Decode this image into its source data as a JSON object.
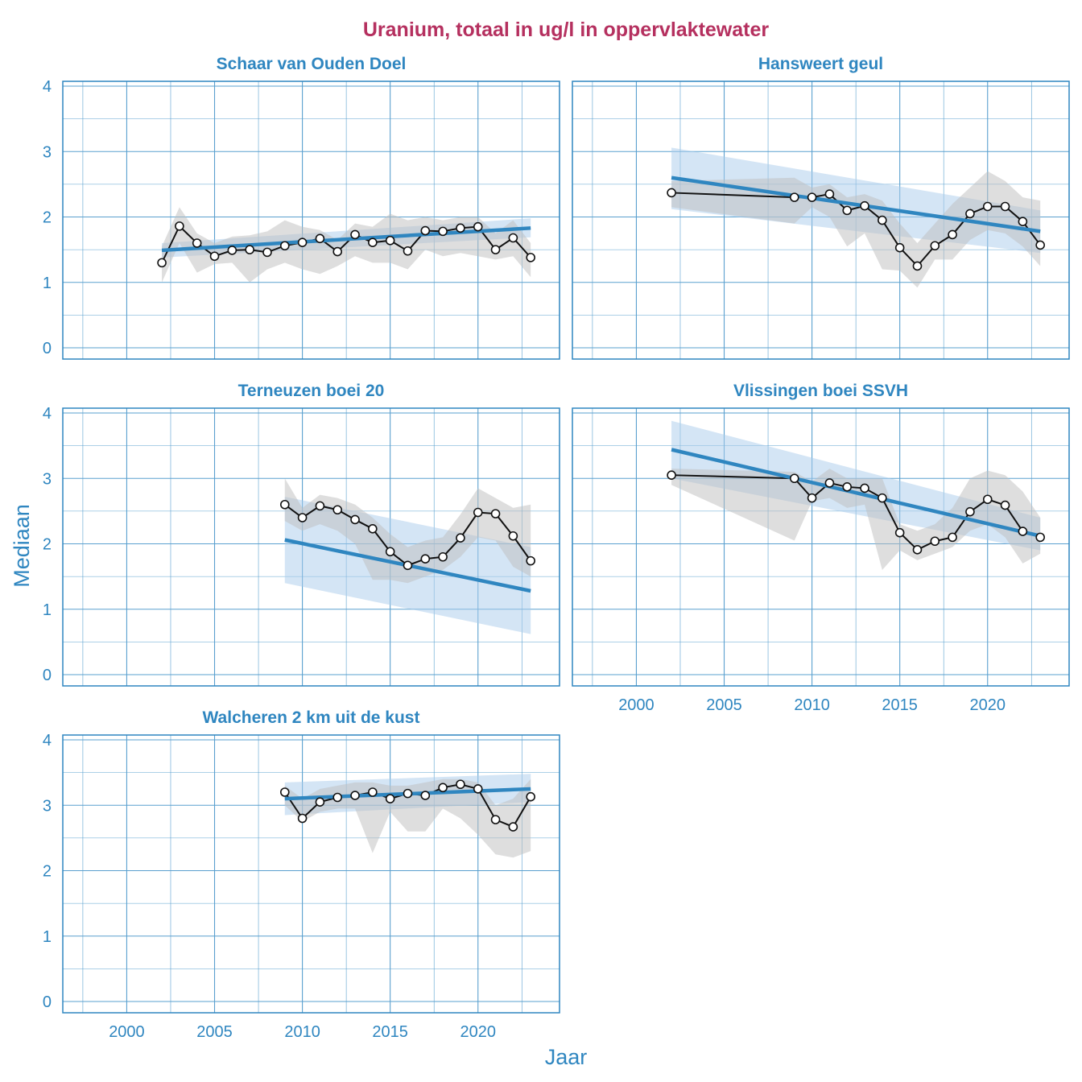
{
  "title": "Uranium, totaal in ug/l in oppervlaktewater",
  "xlabel": "Jaar",
  "ylabel": "Mediaan",
  "colors": {
    "title": "#B5305F",
    "accent": "#2F86C0",
    "grid": "#5AA0CF",
    "ribbon_trend": "#A9CCEC",
    "ribbon_data": "#BEBEBE",
    "line": "#111111"
  },
  "chart_data": [
    {
      "type": "line",
      "title": "Schaar van Ouden Doel",
      "xlim": [
        1997,
        2024
      ],
      "ylim": [
        0,
        4
      ],
      "x_ticks": [
        "2000",
        "2005",
        "2010",
        "2015",
        "2020"
      ],
      "y_ticks": [
        "0",
        "1",
        "2",
        "3",
        "4"
      ],
      "grid": true,
      "points": [
        [
          2002,
          1.3
        ],
        [
          2003,
          1.86
        ],
        [
          2004,
          1.6
        ],
        [
          2005,
          1.4
        ],
        [
          2006,
          1.49
        ],
        [
          2007,
          1.5
        ],
        [
          2008,
          1.46
        ],
        [
          2009,
          1.56
        ],
        [
          2010,
          1.61
        ],
        [
          2011,
          1.67
        ],
        [
          2012,
          1.47
        ],
        [
          2013,
          1.73
        ],
        [
          2014,
          1.61
        ],
        [
          2015,
          1.64
        ],
        [
          2016,
          1.48
        ],
        [
          2017,
          1.79
        ],
        [
          2018,
          1.78
        ],
        [
          2019,
          1.83
        ],
        [
          2020,
          1.85
        ],
        [
          2021,
          1.5
        ],
        [
          2022,
          1.68
        ],
        [
          2023,
          1.38
        ]
      ],
      "data_band": [
        [
          2002,
          1.0,
          1.55
        ],
        [
          2003,
          1.6,
          2.15
        ],
        [
          2004,
          1.15,
          1.75
        ],
        [
          2005,
          1.28,
          1.6
        ],
        [
          2006,
          1.3,
          1.7
        ],
        [
          2007,
          1.0,
          1.72
        ],
        [
          2008,
          1.2,
          1.78
        ],
        [
          2009,
          1.3,
          1.95
        ],
        [
          2010,
          1.2,
          1.85
        ],
        [
          2011,
          1.13,
          1.8
        ],
        [
          2012,
          1.25,
          1.65
        ],
        [
          2013,
          1.4,
          1.9
        ],
        [
          2014,
          1.3,
          1.85
        ],
        [
          2015,
          1.3,
          2.05
        ],
        [
          2016,
          1.2,
          1.95
        ],
        [
          2017,
          1.5,
          2.0
        ],
        [
          2018,
          1.4,
          1.95
        ],
        [
          2019,
          1.45,
          2.0
        ],
        [
          2020,
          1.4,
          2.0
        ],
        [
          2021,
          1.35,
          1.75
        ],
        [
          2022,
          1.4,
          1.95
        ],
        [
          2023,
          1.08,
          1.6
        ]
      ],
      "trend": {
        "x": [
          2002,
          2023
        ],
        "y": [
          1.49,
          1.83
        ],
        "lower": [
          1.38,
          1.69
        ],
        "upper": [
          1.6,
          1.98
        ]
      }
    },
    {
      "type": "line",
      "title": "Hansweert geul",
      "xlim": [
        1997,
        2024
      ],
      "ylim": [
        0,
        4
      ],
      "x_ticks": [
        "2000",
        "2005",
        "2010",
        "2015",
        "2020"
      ],
      "y_ticks": [
        "0",
        "1",
        "2",
        "3",
        "4"
      ],
      "grid": true,
      "points": [
        [
          2002,
          2.37
        ],
        [
          2009,
          2.3
        ],
        [
          2010,
          2.3
        ],
        [
          2011,
          2.35
        ],
        [
          2012,
          2.1
        ],
        [
          2013,
          2.17
        ],
        [
          2014,
          1.95
        ],
        [
          2015,
          1.53
        ],
        [
          2016,
          1.25
        ],
        [
          2017,
          1.56
        ],
        [
          2018,
          1.73
        ],
        [
          2019,
          2.05
        ],
        [
          2020,
          2.16
        ],
        [
          2021,
          2.16
        ],
        [
          2022,
          1.93
        ],
        [
          2023,
          1.57
        ]
      ],
      "data_band": [
        [
          2002,
          2.15,
          2.55
        ],
        [
          2009,
          1.9,
          2.6
        ],
        [
          2010,
          2.15,
          2.45
        ],
        [
          2011,
          2.0,
          2.5
        ],
        [
          2012,
          1.55,
          2.3
        ],
        [
          2013,
          1.75,
          2.35
        ],
        [
          2014,
          1.2,
          2.25
        ],
        [
          2015,
          1.18,
          1.9
        ],
        [
          2016,
          0.92,
          1.6
        ],
        [
          2017,
          1.35,
          1.9
        ],
        [
          2018,
          1.35,
          2.2
        ],
        [
          2019,
          1.65,
          2.45
        ],
        [
          2020,
          1.8,
          2.7
        ],
        [
          2021,
          1.75,
          2.55
        ],
        [
          2022,
          1.55,
          2.3
        ],
        [
          2023,
          1.25,
          2.25
        ]
      ],
      "trend": {
        "x": [
          2002,
          2023
        ],
        "y": [
          2.6,
          1.78
        ],
        "lower": [
          2.12,
          1.45
        ],
        "upper": [
          3.06,
          2.1
        ]
      }
    },
    {
      "type": "line",
      "title": "Terneuzen boei 20",
      "xlim": [
        1997,
        2024
      ],
      "ylim": [
        0,
        4
      ],
      "x_ticks": [
        "2000",
        "2005",
        "2010",
        "2015",
        "2020"
      ],
      "y_ticks": [
        "0",
        "1",
        "2",
        "3",
        "4"
      ],
      "grid": true,
      "points": [
        [
          2009,
          2.6
        ],
        [
          2010,
          2.4
        ],
        [
          2011,
          2.58
        ],
        [
          2012,
          2.52
        ],
        [
          2013,
          2.37
        ],
        [
          2014,
          2.23
        ],
        [
          2015,
          1.88
        ],
        [
          2016,
          1.67
        ],
        [
          2017,
          1.77
        ],
        [
          2018,
          1.8
        ],
        [
          2019,
          2.09
        ],
        [
          2020,
          2.48
        ],
        [
          2021,
          2.46
        ],
        [
          2022,
          2.12
        ],
        [
          2023,
          1.74
        ]
      ],
      "data_band": [
        [
          2009,
          2.35,
          3.0
        ],
        [
          2010,
          2.2,
          2.55
        ],
        [
          2011,
          2.3,
          2.75
        ],
        [
          2012,
          2.2,
          2.7
        ],
        [
          2013,
          2.0,
          2.6
        ],
        [
          2014,
          1.45,
          2.4
        ],
        [
          2015,
          1.45,
          2.15
        ],
        [
          2016,
          1.4,
          1.95
        ],
        [
          2017,
          1.5,
          2.05
        ],
        [
          2018,
          1.6,
          2.1
        ],
        [
          2019,
          1.8,
          2.45
        ],
        [
          2020,
          2.1,
          2.85
        ],
        [
          2021,
          2.05,
          2.7
        ],
        [
          2022,
          1.65,
          2.55
        ],
        [
          2023,
          1.5,
          2.6
        ]
      ],
      "trend": {
        "x": [
          2009,
          2023
        ],
        "y": [
          2.06,
          1.28
        ],
        "lower": [
          1.4,
          0.62
        ],
        "upper": [
          2.72,
          1.95
        ]
      }
    },
    {
      "type": "line",
      "title": "Vlissingen boei SSVH",
      "xlim": [
        1997,
        2024
      ],
      "ylim": [
        0,
        4
      ],
      "x_ticks": [
        "2000",
        "2005",
        "2010",
        "2015",
        "2020"
      ],
      "y_ticks": [
        "0",
        "1",
        "2",
        "3",
        "4"
      ],
      "grid": true,
      "points": [
        [
          2002,
          3.05
        ],
        [
          2009,
          3.0
        ],
        [
          2010,
          2.7
        ],
        [
          2011,
          2.93
        ],
        [
          2012,
          2.87
        ],
        [
          2013,
          2.85
        ],
        [
          2014,
          2.7
        ],
        [
          2015,
          2.17
        ],
        [
          2016,
          1.91
        ],
        [
          2017,
          2.04
        ],
        [
          2018,
          2.1
        ],
        [
          2019,
          2.49
        ],
        [
          2020,
          2.68
        ],
        [
          2021,
          2.59
        ],
        [
          2022,
          2.19
        ],
        [
          2023,
          2.1
        ]
      ],
      "data_band": [
        [
          2002,
          2.9,
          3.15
        ],
        [
          2009,
          2.05,
          3.1
        ],
        [
          2010,
          2.65,
          2.95
        ],
        [
          2011,
          2.7,
          3.15
        ],
        [
          2012,
          2.55,
          3.0
        ],
        [
          2013,
          2.6,
          3.0
        ],
        [
          2014,
          1.6,
          3.0
        ],
        [
          2015,
          1.9,
          2.3
        ],
        [
          2016,
          1.75,
          2.2
        ],
        [
          2017,
          1.85,
          2.3
        ],
        [
          2018,
          1.95,
          2.55
        ],
        [
          2019,
          2.2,
          3.0
        ],
        [
          2020,
          2.3,
          3.12
        ],
        [
          2021,
          2.1,
          3.05
        ],
        [
          2022,
          1.7,
          2.8
        ],
        [
          2023,
          1.85,
          2.4
        ]
      ],
      "trend": {
        "x": [
          2002,
          2023
        ],
        "y": [
          3.44,
          2.12
        ],
        "lower": [
          3.0,
          1.9
        ],
        "upper": [
          3.88,
          2.4
        ]
      }
    },
    {
      "type": "line",
      "title": "Walcheren 2 km uit de kust",
      "xlim": [
        1997,
        2024
      ],
      "ylim": [
        0,
        4
      ],
      "x_ticks": [
        "2000",
        "2005",
        "2010",
        "2015",
        "2020"
      ],
      "y_ticks": [
        "0",
        "1",
        "2",
        "3",
        "4"
      ],
      "grid": true,
      "points": [
        [
          2009,
          3.2
        ],
        [
          2010,
          2.8
        ],
        [
          2011,
          3.05
        ],
        [
          2012,
          3.12
        ],
        [
          2013,
          3.15
        ],
        [
          2014,
          3.2
        ],
        [
          2015,
          3.1
        ],
        [
          2016,
          3.18
        ],
        [
          2017,
          3.15
        ],
        [
          2018,
          3.27
        ],
        [
          2019,
          3.32
        ],
        [
          2020,
          3.25
        ],
        [
          2021,
          2.78
        ],
        [
          2022,
          2.67
        ],
        [
          2023,
          3.13
        ]
      ],
      "data_band": [
        [
          2009,
          3.0,
          3.3
        ],
        [
          2010,
          2.75,
          3.1
        ],
        [
          2011,
          2.9,
          3.25
        ],
        [
          2012,
          2.95,
          3.3
        ],
        [
          2013,
          2.95,
          3.35
        ],
        [
          2014,
          2.27,
          3.35
        ],
        [
          2015,
          2.9,
          3.3
        ],
        [
          2016,
          2.6,
          3.3
        ],
        [
          2017,
          2.6,
          3.35
        ],
        [
          2018,
          2.95,
          3.4
        ],
        [
          2019,
          2.8,
          3.4
        ],
        [
          2020,
          2.55,
          3.35
        ],
        [
          2021,
          2.25,
          3.0
        ],
        [
          2022,
          2.2,
          3.1
        ],
        [
          2023,
          2.3,
          3.4
        ]
      ],
      "trend": {
        "x": [
          2009,
          2023
        ],
        "y": [
          3.1,
          3.25
        ],
        "lower": [
          2.85,
          3.05
        ],
        "upper": [
          3.35,
          3.48
        ]
      }
    }
  ]
}
